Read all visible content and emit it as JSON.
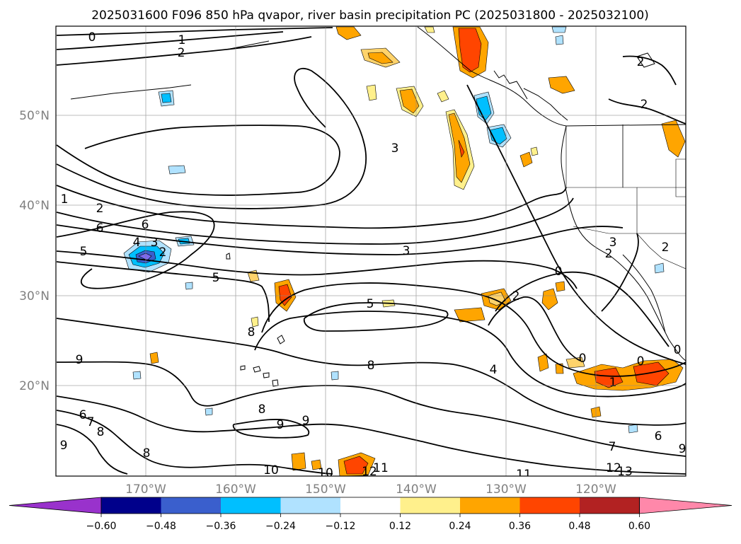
{
  "title": "2025031600 F096 850 hPa qvapor, river basin precipitation PC (2025031800 - 2025032100)",
  "lat_labels": [
    "50°N",
    "40°N",
    "30°N",
    "20°N"
  ],
  "lon_labels": [
    "170°W",
    "160°W",
    "150°W",
    "140°W",
    "130°W",
    "120°W"
  ],
  "colorbar": {
    "tick_labels": [
      "−0.60",
      "−0.48",
      "−0.36",
      "−0.24",
      "−0.12",
      "0.12",
      "0.24",
      "0.36",
      "0.48",
      "0.60"
    ],
    "colors": [
      "#9932cc",
      "#00008b",
      "#3a5fcd",
      "#00bfff",
      "#b0e2ff",
      "#ffffff",
      "#fff08c",
      "#ffa500",
      "#ff4500",
      "#b22222",
      "#ff88aa"
    ]
  },
  "contour_labels": [
    {
      "text": "0"
    },
    {
      "text": "1"
    },
    {
      "text": "2"
    },
    {
      "text": "2"
    },
    {
      "text": "2"
    },
    {
      "text": "1"
    },
    {
      "text": "2"
    },
    {
      "text": "6"
    },
    {
      "text": "6"
    },
    {
      "text": "5"
    },
    {
      "text": "4"
    },
    {
      "text": "3"
    },
    {
      "text": "2"
    },
    {
      "text": "3"
    },
    {
      "text": "3"
    },
    {
      "text": "5"
    },
    {
      "text": "5"
    },
    {
      "text": "8"
    },
    {
      "text": "8"
    },
    {
      "text": "9"
    },
    {
      "text": "6"
    },
    {
      "text": "7"
    },
    {
      "text": "8"
    },
    {
      "text": "9"
    },
    {
      "text": "8"
    },
    {
      "text": "8"
    },
    {
      "text": "9"
    },
    {
      "text": "9"
    },
    {
      "text": "10"
    },
    {
      "text": "10"
    },
    {
      "text": "12"
    },
    {
      "text": "11"
    },
    {
      "text": "11"
    },
    {
      "text": "12"
    },
    {
      "text": "13"
    },
    {
      "text": "7"
    },
    {
      "text": "6"
    },
    {
      "text": "9"
    },
    {
      "text": "4"
    },
    {
      "text": "2"
    },
    {
      "text": "0"
    },
    {
      "text": "0"
    },
    {
      "text": "0"
    },
    {
      "text": "1"
    },
    {
      "text": "2"
    },
    {
      "text": "3"
    },
    {
      "text": "2"
    },
    {
      "text": "0"
    }
  ]
}
